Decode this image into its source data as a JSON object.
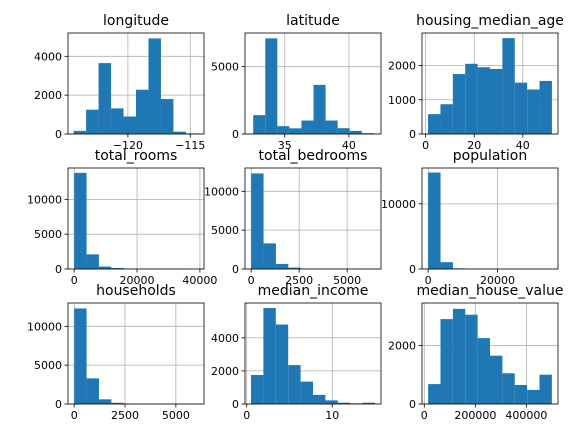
{
  "chart_data": [
    {
      "type": "bar",
      "title": "longitude",
      "bar_color": "#1f77b4",
      "xlim": [
        -124.8,
        -113.9
      ],
      "ylim": [
        0,
        5200
      ],
      "bins": [
        [
          -124.35,
          -123.35,
          160
        ],
        [
          -123.35,
          -122.35,
          1250
        ],
        [
          -122.35,
          -121.35,
          3650
        ],
        [
          -121.35,
          -120.35,
          1320
        ],
        [
          -120.35,
          -119.35,
          900
        ],
        [
          -119.35,
          -118.35,
          2280
        ],
        [
          -118.35,
          -117.35,
          4920
        ],
        [
          -117.35,
          -116.35,
          1800
        ],
        [
          -116.35,
          -115.35,
          120
        ],
        [
          -115.35,
          -114.35,
          30
        ]
      ],
      "xticks": [
        {
          "value": -120,
          "label": "−120"
        },
        {
          "value": -115,
          "label": "−115"
        }
      ],
      "yticks": [
        {
          "value": 0,
          "label": "0"
        },
        {
          "value": 2000,
          "label": "2000"
        },
        {
          "value": 4000,
          "label": "4000"
        }
      ]
    },
    {
      "type": "bar",
      "title": "latitude",
      "bar_color": "#1f77b4",
      "xlim": [
        31.9,
        42.5
      ],
      "ylim": [
        0,
        7500
      ],
      "bins": [
        [
          32.54,
          33.48,
          1400
        ],
        [
          33.48,
          34.42,
          7100
        ],
        [
          34.42,
          35.36,
          580
        ],
        [
          35.36,
          36.3,
          420
        ],
        [
          36.3,
          37.24,
          1000
        ],
        [
          37.24,
          38.18,
          3650
        ],
        [
          38.18,
          39.12,
          1000
        ],
        [
          39.12,
          40.06,
          430
        ],
        [
          40.06,
          41.0,
          230
        ],
        [
          41.0,
          41.95,
          60
        ]
      ],
      "xticks": [
        {
          "value": 35,
          "label": "35"
        },
        {
          "value": 40,
          "label": "40"
        }
      ],
      "yticks": [
        {
          "value": 0,
          "label": "0"
        },
        {
          "value": 5000,
          "label": "5000"
        }
      ]
    },
    {
      "type": "bar",
      "title": "housing_median_age",
      "bar_color": "#1f77b4",
      "xlim": [
        -1.5,
        54.5
      ],
      "ylim": [
        0,
        2950
      ],
      "bins": [
        [
          1,
          6.1,
          580
        ],
        [
          6.1,
          11.2,
          870
        ],
        [
          11.2,
          16.3,
          1750
        ],
        [
          16.3,
          21.4,
          2050
        ],
        [
          21.4,
          26.5,
          1950
        ],
        [
          26.5,
          31.6,
          1900
        ],
        [
          31.6,
          36.7,
          2800
        ],
        [
          36.7,
          41.8,
          1500
        ],
        [
          41.8,
          46.9,
          1300
        ],
        [
          46.9,
          52,
          1550
        ]
      ],
      "xticks": [
        {
          "value": 0,
          "label": "0"
        },
        {
          "value": 20,
          "label": "20"
        },
        {
          "value": 40,
          "label": "40"
        }
      ],
      "yticks": [
        {
          "value": 0,
          "label": "0"
        },
        {
          "value": 1000,
          "label": "1000"
        },
        {
          "value": 2000,
          "label": "2000"
        }
      ]
    },
    {
      "type": "bar",
      "title": "total_rooms",
      "bar_color": "#1f77b4",
      "xlim": [
        -1970,
        41300
      ],
      "ylim": [
        0,
        14500
      ],
      "bins": [
        [
          2,
          3934,
          13800
        ],
        [
          3934,
          7866,
          2100
        ],
        [
          7866,
          11798,
          350
        ],
        [
          11798,
          15730,
          150
        ],
        [
          15730,
          19662,
          50
        ],
        [
          19662,
          23594,
          20
        ],
        [
          23594,
          27526,
          10
        ],
        [
          27526,
          31458,
          8
        ],
        [
          31458,
          35390,
          5
        ],
        [
          35390,
          39320,
          3
        ]
      ],
      "xticks": [
        {
          "value": 0,
          "label": "0"
        },
        {
          "value": 20000,
          "label": "20000"
        },
        {
          "value": 40000,
          "label": "40000"
        }
      ],
      "yticks": [
        {
          "value": 0,
          "label": "0"
        },
        {
          "value": 5000,
          "label": "5000"
        },
        {
          "value": 10000,
          "label": "10000"
        }
      ]
    },
    {
      "type": "bar",
      "title": "total_bedrooms",
      "bar_color": "#1f77b4",
      "xlim": [
        -322,
        6765
      ],
      "ylim": [
        0,
        13000
      ],
      "bins": [
        [
          1,
          645,
          12300
        ],
        [
          645,
          1289,
          3300
        ],
        [
          1289,
          1934,
          650
        ],
        [
          1934,
          2578,
          180
        ],
        [
          2578,
          3222,
          60
        ],
        [
          3222,
          3867,
          25
        ],
        [
          3867,
          4511,
          10
        ],
        [
          4511,
          5156,
          6
        ],
        [
          5156,
          5800,
          4
        ],
        [
          5800,
          6445,
          2
        ]
      ],
      "xticks": [
        {
          "value": 0,
          "label": "0"
        },
        {
          "value": 2500,
          "label": "2500"
        },
        {
          "value": 5000,
          "label": "5000"
        }
      ],
      "yticks": [
        {
          "value": 0,
          "label": "0"
        },
        {
          "value": 5000,
          "label": "5000"
        },
        {
          "value": 10000,
          "label": "10000"
        }
      ]
    },
    {
      "type": "bar",
      "title": "population",
      "bar_color": "#1f77b4",
      "xlim": [
        -1780,
        37460
      ],
      "ylim": [
        0,
        15500
      ],
      "bins": [
        [
          3,
          3571,
          14800
        ],
        [
          3571,
          7139,
          1050
        ],
        [
          7139,
          10706,
          100
        ],
        [
          10706,
          14274,
          30
        ],
        [
          14274,
          17841,
          10
        ],
        [
          17841,
          21409,
          5
        ],
        [
          21409,
          24976,
          3
        ],
        [
          24976,
          28544,
          2
        ],
        [
          28544,
          32111,
          1
        ],
        [
          32111,
          35682,
          1
        ]
      ],
      "xticks": [
        {
          "value": 0,
          "label": "0"
        },
        {
          "value": 20000,
          "label": "20000"
        }
      ],
      "yticks": [
        {
          "value": 0,
          "label": "0"
        },
        {
          "value": 10000,
          "label": "10000"
        }
      ]
    },
    {
      "type": "bar",
      "title": "households",
      "bar_color": "#1f77b4",
      "xlim": [
        -305,
        6384
      ],
      "ylim": [
        0,
        13000
      ],
      "bins": [
        [
          1,
          609,
          12300
        ],
        [
          609,
          1218,
          3300
        ],
        [
          1218,
          1827,
          600
        ],
        [
          1827,
          2436,
          150
        ],
        [
          2436,
          3044,
          50
        ],
        [
          3044,
          3653,
          20
        ],
        [
          3653,
          4262,
          10
        ],
        [
          4262,
          4871,
          5
        ],
        [
          4871,
          5480,
          3
        ],
        [
          5480,
          6082,
          2
        ]
      ],
      "xticks": [
        {
          "value": 0,
          "label": "0"
        },
        {
          "value": 2500,
          "label": "2500"
        },
        {
          "value": 5000,
          "label": "5000"
        }
      ],
      "yticks": [
        {
          "value": 0,
          "label": "0"
        },
        {
          "value": 5000,
          "label": "5000"
        },
        {
          "value": 10000,
          "label": "10000"
        }
      ]
    },
    {
      "type": "bar",
      "title": "median_income",
      "bar_color": "#1f77b4",
      "xlim": [
        -0.2,
        15.7
      ],
      "ylim": [
        0,
        6100
      ],
      "bins": [
        [
          0.5,
          1.95,
          1750
        ],
        [
          1.95,
          3.4,
          5800
        ],
        [
          3.4,
          4.85,
          4800
        ],
        [
          4.85,
          6.3,
          2350
        ],
        [
          6.3,
          7.75,
          1350
        ],
        [
          7.75,
          9.2,
          550
        ],
        [
          9.2,
          10.65,
          220
        ],
        [
          10.65,
          12.1,
          80
        ],
        [
          12.1,
          13.55,
          40
        ],
        [
          13.55,
          15.0,
          80
        ]
      ],
      "xticks": [
        {
          "value": 0,
          "label": "0"
        },
        {
          "value": 10,
          "label": "10"
        }
      ],
      "yticks": [
        {
          "value": 0,
          "label": "0"
        },
        {
          "value": 2000,
          "label": "2000"
        },
        {
          "value": 4000,
          "label": "4000"
        }
      ]
    },
    {
      "type": "bar",
      "title": "median_house_value",
      "bar_color": "#1f77b4",
      "xlim": [
        -9000,
        524000
      ],
      "ylim": [
        0,
        3450
      ],
      "bins": [
        [
          15000,
          63500,
          680
        ],
        [
          63500,
          112000,
          2900
        ],
        [
          112000,
          160500,
          3250
        ],
        [
          160500,
          209000,
          3050
        ],
        [
          209000,
          257500,
          2250
        ],
        [
          257500,
          306000,
          1650
        ],
        [
          306000,
          354500,
          1050
        ],
        [
          354500,
          403000,
          650
        ],
        [
          403000,
          451500,
          480
        ],
        [
          451500,
          500001,
          1000
        ]
      ],
      "xticks": [
        {
          "value": 0,
          "label": "0"
        },
        {
          "value": 200000,
          "label": "200000"
        },
        {
          "value": 400000,
          "label": "400000"
        }
      ],
      "yticks": [
        {
          "value": 0,
          "label": "0"
        },
        {
          "value": 2000,
          "label": "2000"
        }
      ]
    }
  ]
}
